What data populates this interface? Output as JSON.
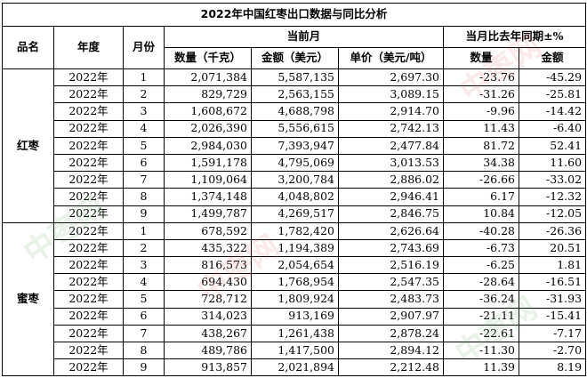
{
  "title": "2022年中国红枣出口数据与同比分析",
  "headers": {
    "product": "品名",
    "year": "年度",
    "month": "月份",
    "current_month": "当前月",
    "yoy": "当月比去年同期±%",
    "quantity": "数量（千克）",
    "amount": "金额（美元）",
    "unit_price": "单价（美元/吨）",
    "yoy_quantity": "数量",
    "yoy_amount": "金额"
  },
  "groups": [
    {
      "product": "红枣",
      "rows": [
        {
          "year": "2022年",
          "month": "1",
          "quantity": "2,071,384",
          "amount": "5,587,135",
          "unit_price": "2,697.30",
          "yoy_quantity": "-23.76",
          "yoy_amount": "-45.29"
        },
        {
          "year": "2022年",
          "month": "2",
          "quantity": "829,729",
          "amount": "2,563,155",
          "unit_price": "3,089.15",
          "yoy_quantity": "-31.26",
          "yoy_amount": "-25.81"
        },
        {
          "year": "2022年",
          "month": "3",
          "quantity": "1,608,672",
          "amount": "4,688,798",
          "unit_price": "2,914.70",
          "yoy_quantity": "-9.96",
          "yoy_amount": "-14.42"
        },
        {
          "year": "2022年",
          "month": "4",
          "quantity": "2,026,390",
          "amount": "5,556,615",
          "unit_price": "2,742.13",
          "yoy_quantity": "11.43",
          "yoy_amount": "-6.40"
        },
        {
          "year": "2022年",
          "month": "5",
          "quantity": "2,984,030",
          "amount": "7,393,947",
          "unit_price": "2,477.84",
          "yoy_quantity": "81.72",
          "yoy_amount": "52.41"
        },
        {
          "year": "2022年",
          "month": "6",
          "quantity": "1,591,178",
          "amount": "4,795,069",
          "unit_price": "3,013.53",
          "yoy_quantity": "34.38",
          "yoy_amount": "11.60"
        },
        {
          "year": "2022年",
          "month": "7",
          "quantity": "1,109,064",
          "amount": "3,200,784",
          "unit_price": "2,886.02",
          "yoy_quantity": "-26.66",
          "yoy_amount": "-33.02"
        },
        {
          "year": "2022年",
          "month": "8",
          "quantity": "1,374,148",
          "amount": "4,048,802",
          "unit_price": "2,946.41",
          "yoy_quantity": "6.17",
          "yoy_amount": "-12.32"
        },
        {
          "year": "2022年",
          "month": "9",
          "quantity": "1,499,787",
          "amount": "4,269,517",
          "unit_price": "2,846.75",
          "yoy_quantity": "10.84",
          "yoy_amount": "-12.05"
        }
      ]
    },
    {
      "product": "蜜枣",
      "rows": [
        {
          "year": "2022年",
          "month": "1",
          "quantity": "678,592",
          "amount": "1,782,420",
          "unit_price": "2,626.64",
          "yoy_quantity": "-40.28",
          "yoy_amount": "-26.36"
        },
        {
          "year": "2022年",
          "month": "2",
          "quantity": "435,322",
          "amount": "1,194,389",
          "unit_price": "2,743.69",
          "yoy_quantity": "-6.73",
          "yoy_amount": "20.51"
        },
        {
          "year": "2022年",
          "month": "3",
          "quantity": "816,573",
          "amount": "2,054,654",
          "unit_price": "2,516.19",
          "yoy_quantity": "-6.25",
          "yoy_amount": "1.81"
        },
        {
          "year": "2022年",
          "month": "4",
          "quantity": "694,430",
          "amount": "1,768,954",
          "unit_price": "2,547.35",
          "yoy_quantity": "-28.64",
          "yoy_amount": "-16.51"
        },
        {
          "year": "2022年",
          "month": "5",
          "quantity": "728,712",
          "amount": "1,809,924",
          "unit_price": "2,483.73",
          "yoy_quantity": "-36.24",
          "yoy_amount": "-31.93"
        },
        {
          "year": "2022年",
          "month": "6",
          "quantity": "314,023",
          "amount": "913,169",
          "unit_price": "2,907.97",
          "yoy_quantity": "-21.11",
          "yoy_amount": "-15.41"
        },
        {
          "year": "2022年",
          "month": "7",
          "quantity": "438,267",
          "amount": "1,261,438",
          "unit_price": "2,878.24",
          "yoy_quantity": "-22.61",
          "yoy_amount": "-7.17"
        },
        {
          "year": "2022年",
          "month": "8",
          "quantity": "489,786",
          "amount": "1,417,500",
          "unit_price": "2,894.12",
          "yoy_quantity": "-11.30",
          "yoy_amount": "-2.70"
        },
        {
          "year": "2022年",
          "month": "9",
          "quantity": "913,857",
          "amount": "2,021,894",
          "unit_price": "2,212.48",
          "yoy_quantity": "11.39",
          "yoy_amount": "8.19"
        }
      ]
    }
  ],
  "watermark": {
    "text": "中枣网",
    "colors": [
      "#e65a5a",
      "#5aaa5a"
    ]
  }
}
